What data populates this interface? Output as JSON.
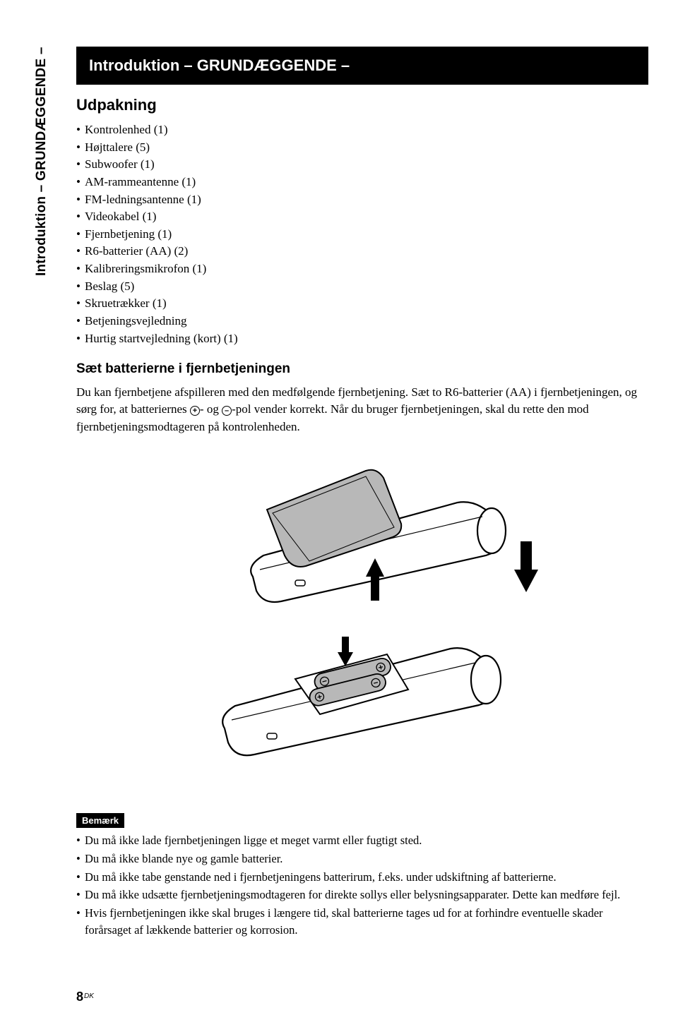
{
  "sidebar": {
    "label": "Introduktion – GRUNDÆGGENDE –"
  },
  "title": "Introduktion – GRUNDÆGGENDE –",
  "section1": {
    "heading": "Udpakning",
    "items": [
      "Kontrolenhed (1)",
      "Højttalere (5)",
      "Subwoofer (1)",
      "AM-rammeantenne (1)",
      "FM-ledningsantenne (1)",
      "Videokabel (1)",
      "Fjernbetjening (1)",
      "R6-batterier (AA) (2)",
      "Kalibreringsmikrofon (1)",
      "Beslag (5)",
      "Skruetrækker (1)",
      "Betjeningsvejledning",
      "Hurtig startvejledning (kort) (1)"
    ]
  },
  "section2": {
    "heading": "Sæt batterierne i fjernbetjeningen",
    "body_part1": "Du kan fjernbetjene afspilleren med den medfølgende fjernbetjening. Sæt to R6-batterier (AA) i fjernbetjeningen, og sørg for, at batteriernes ",
    "body_part2": "- og ",
    "body_part3": "-pol vender korrekt. Når du bruger fjernbetjeningen, skal du rette den mod fjernbetjeningsmodtageren på kontrolenheden.",
    "plus": "+",
    "minus": "–"
  },
  "note": {
    "label": "Bemærk",
    "items": [
      "Du må ikke lade fjernbetjeningen ligge et meget varmt eller fugtigt sted.",
      "Du må ikke blande nye og gamle batterier.",
      "Du må ikke tabe genstande ned i fjernbetjeningens batterirum, f.eks. under udskiftning af batterierne.",
      "Du må ikke udsætte fjernbetjeningsmodtageren for direkte sollys eller belysningsapparater. Dette kan medføre fejl.",
      "Hvis fjernbetjeningen ikke skal bruges i længere tid, skal batterierne tages ud for at forhindre eventuelle skader forårsaget af lækkende batterier og korrosion."
    ]
  },
  "page": {
    "number": "8",
    "lang": "DK"
  },
  "illustration": {
    "stroke": "#000000",
    "fill_grey": "#b8b8b8",
    "fill_white": "#ffffff",
    "fill_black": "#000000"
  }
}
